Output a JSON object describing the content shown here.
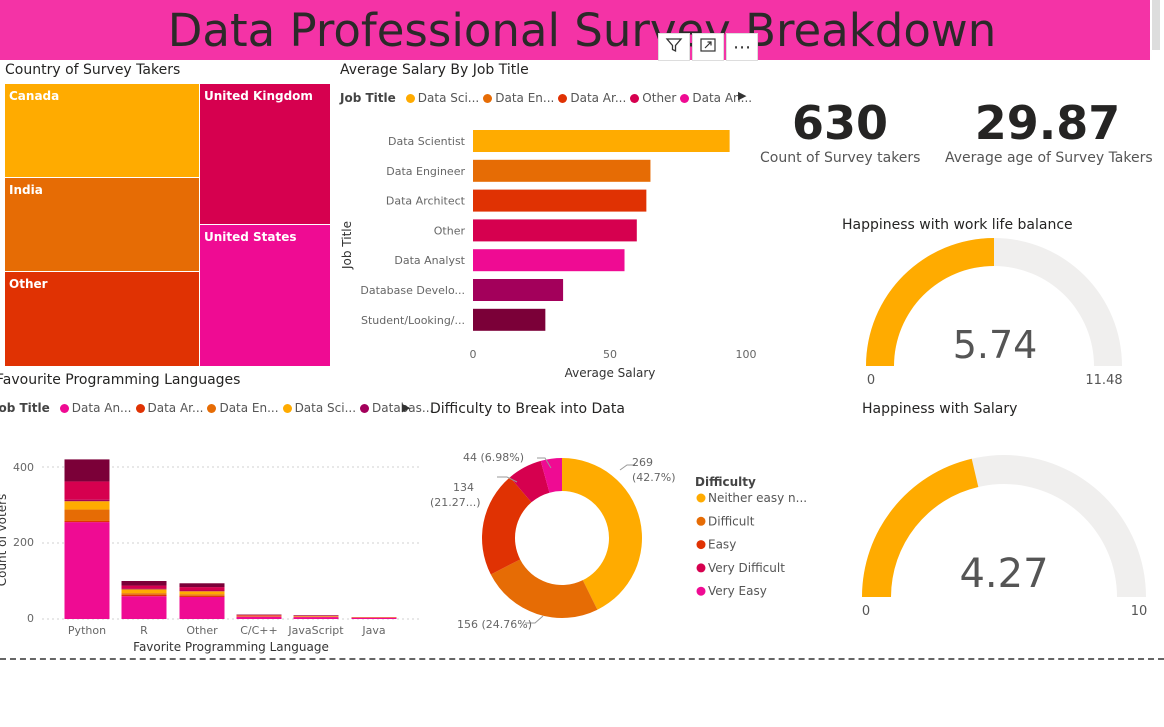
{
  "page": {
    "title": "Data Professional Survey Breakdown"
  },
  "toolbar": {
    "filter_icon": "filter-icon",
    "focus_icon": "focus-mode-icon",
    "more_label": "⋯"
  },
  "treemap": {
    "title": "Country of Survey Takers",
    "cells": [
      {
        "label": "Canada",
        "color": "#ffab00"
      },
      {
        "label": "India",
        "color": "#e66c05"
      },
      {
        "label": "Other",
        "color": "#e03203"
      },
      {
        "label": "United Kingdom",
        "color": "#d6004f"
      },
      {
        "label": "United States",
        "color": "#ef0b93"
      }
    ]
  },
  "salary_chart": {
    "title": "Average Salary By Job Title",
    "legend_label": "Job Title",
    "legend_items": [
      {
        "label": "Data Sci...",
        "color": "#ffab00"
      },
      {
        "label": "Data En...",
        "color": "#e66c05"
      },
      {
        "label": "Data Ar...",
        "color": "#e03203"
      },
      {
        "label": "Other",
        "color": "#d6004f"
      },
      {
        "label": "Data An...",
        "color": "#ef0b93"
      }
    ],
    "xlabel": "Average Salary",
    "ylabel": "Job Title",
    "x_ticks": [
      "0",
      "50",
      "100"
    ]
  },
  "kpis": [
    {
      "value": "630",
      "label": "Count of Survey takers"
    },
    {
      "value": "29.87",
      "label": "Average age of Survey Takers"
    }
  ],
  "gauges": [
    {
      "title": "Happiness with work life balance",
      "value_text": "5.74",
      "min_text": "0",
      "max_text": "11.48"
    },
    {
      "title": "Happiness with Salary",
      "value_text": "4.27",
      "min_text": "0",
      "max_text": "10"
    }
  ],
  "lang_chart": {
    "title": "Favourite Programming Languages",
    "legend_label": "Job Title",
    "legend_items": [
      {
        "label": "Data An...",
        "color": "#ef0b93"
      },
      {
        "label": "Data Ar...",
        "color": "#e03203"
      },
      {
        "label": "Data En...",
        "color": "#e66c05"
      },
      {
        "label": "Data Sci...",
        "color": "#ffab00"
      },
      {
        "label": "Databas...",
        "color": "#a3005b"
      }
    ],
    "xlabel": "Favorite Programming Language",
    "ylabel": "Count of voters",
    "y_ticks": [
      "0",
      "200",
      "400"
    ]
  },
  "donut_chart": {
    "title": "Difficulty to Break into Data",
    "legend_title": "Difficulty",
    "legend_items": [
      {
        "label": "Neither easy n...",
        "color": "#ffab00"
      },
      {
        "label": "Difficult",
        "color": "#e66c05"
      },
      {
        "label": "Easy",
        "color": "#e03203"
      },
      {
        "label": "Very Difficult",
        "color": "#d6004f"
      },
      {
        "label": "Very Easy",
        "color": "#ef0b93"
      }
    ],
    "labels": {
      "neither_1": "269",
      "neither_2": "(42.7%)",
      "difficult": "156 (24.76%)",
      "easy_1": "134",
      "easy_2": "(21.27...)",
      "very_difficult": "44 (6.98%)"
    }
  },
  "chart_data": [
    {
      "type": "bar",
      "orientation": "horizontal",
      "title": "Average Salary By Job Title",
      "xlabel": "Average Salary",
      "ylabel": "Job Title",
      "xlim": [
        0,
        100
      ],
      "categories": [
        "Data Scientist",
        "Data Engineer",
        "Data Architect",
        "Other",
        "Data Analyst",
        "Database Develo...",
        "Student/Looking/..."
      ],
      "values": [
        94,
        65,
        63.5,
        60,
        55.5,
        33,
        26.5
      ],
      "colors": [
        "#ffab00",
        "#e66c05",
        "#e03203",
        "#d6004f",
        "#ef0b93",
        "#a3005b",
        "#7b0038"
      ]
    },
    {
      "type": "bar",
      "stacked": true,
      "title": "Favourite Programming Languages",
      "xlabel": "Favorite Programming Language",
      "ylabel": "Count of voters",
      "ylim": [
        0,
        440
      ],
      "categories": [
        "Python",
        "R",
        "Other",
        "C/C++",
        "JavaScript",
        "Java"
      ],
      "series": [
        {
          "name": "Data An...",
          "values": [
            255,
            60,
            58,
            6,
            5,
            3
          ],
          "color": "#ef0b93"
        },
        {
          "name": "Data Ar...",
          "values": [
            3,
            4,
            3,
            1,
            1,
            0
          ],
          "color": "#e03203"
        },
        {
          "name": "Data En...",
          "values": [
            30,
            4,
            4,
            1,
            1,
            0
          ],
          "color": "#e66c05"
        },
        {
          "name": "Data Sci...",
          "values": [
            22,
            10,
            8,
            1,
            1,
            1
          ],
          "color": "#ffab00"
        },
        {
          "name": "Databas...",
          "values": [
            4,
            2,
            2,
            0,
            0,
            0
          ],
          "color": "#a3005b"
        },
        {
          "values": [
            48,
            8,
            9,
            2,
            1,
            1
          ],
          "color": "#d6004f"
        },
        {
          "values": [
            58,
            12,
            10,
            1,
            1,
            0
          ],
          "color": "#7b0038"
        }
      ]
    },
    {
      "type": "pie",
      "donut": true,
      "title": "Difficulty to Break into Data",
      "categories": [
        "Neither easy n...",
        "Difficult",
        "Easy",
        "Very Difficult",
        "Very Easy"
      ],
      "values": [
        269,
        156,
        134,
        44,
        27
      ],
      "colors": [
        "#ffab00",
        "#e66c05",
        "#e03203",
        "#d6004f",
        "#ef0b93"
      ]
    },
    {
      "type": "gauge",
      "title": "Happiness with work life balance",
      "value": 5.74,
      "range": [
        0,
        11.48
      ]
    },
    {
      "type": "gauge",
      "title": "Happiness with Salary",
      "value": 4.27,
      "range": [
        0,
        10
      ]
    }
  ]
}
